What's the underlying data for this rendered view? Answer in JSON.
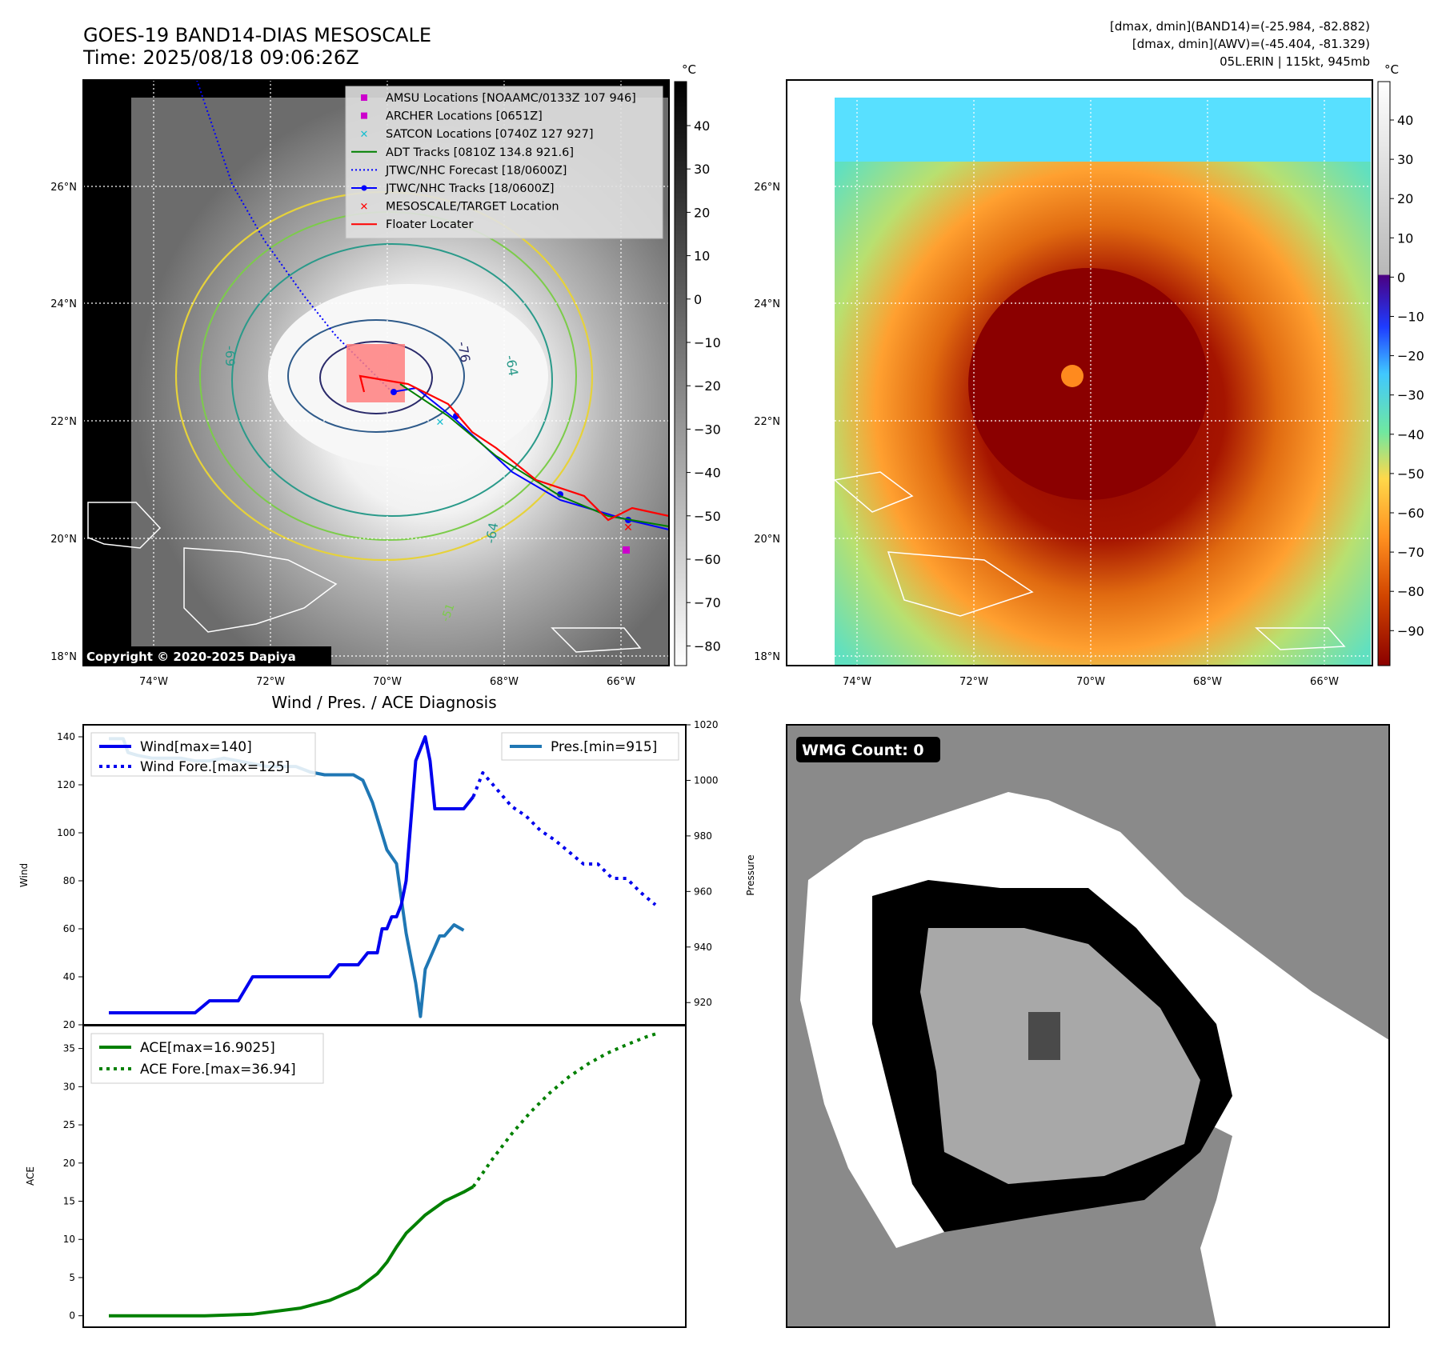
{
  "header": {
    "title": "GOES-19 BAND14-DIAS MESOSCALE",
    "time": "Time: 2025/08/18 09:06:26Z",
    "dmax_band14": "[dmax, dmin](BAND14)=(-25.984, -82.882)",
    "dmax_awv": "[dmax, dmin](AWV)=(-45.404, -81.329)",
    "storm": "05L.ERIN | 115kt, 945mb"
  },
  "map": {
    "lon_labels": [
      "74°W",
      "72°W",
      "70°W",
      "68°W",
      "66°W"
    ],
    "lat_labels": [
      "26°N",
      "24°N",
      "22°N",
      "20°N",
      "18°N"
    ],
    "copyright": "Copyright © 2020-2025 Dapiya",
    "contour_labels": [
      "-76",
      "-64",
      "-64",
      "-69",
      "-51"
    ],
    "legend": [
      {
        "label": "AMSU Locations [NOAAMC/0133Z 107 946]",
        "color": "#cc00cc",
        "marker": "square"
      },
      {
        "label": "ARCHER Locations [0651Z]",
        "color": "#cc00cc",
        "marker": "square"
      },
      {
        "label": "SATCON Locations [0740Z 127 927]",
        "color": "#17becf",
        "marker": "x"
      },
      {
        "label": "ADT Tracks [0810Z 134.8 921.6]",
        "color": "#008000",
        "marker": "line"
      },
      {
        "label": "JTWC/NHC Forecast [18/0600Z]",
        "color": "#0000ff",
        "marker": "dotted"
      },
      {
        "label": "JTWC/NHC Tracks [18/0600Z]",
        "color": "#0000ff",
        "marker": "line-dot"
      },
      {
        "label": "MESOSCALE/TARGET Location",
        "color": "#ff0000",
        "marker": "x"
      },
      {
        "label": "Floater Locater",
        "color": "#ff0000",
        "marker": "line"
      }
    ]
  },
  "colorbars": {
    "unit": "°C",
    "gray_ticks": [
      "40",
      "30",
      "20",
      "10",
      "0",
      "−10",
      "−20",
      "−30",
      "−40",
      "−50",
      "−60",
      "−70",
      "−80"
    ],
    "color_ticks": [
      "40",
      "30",
      "20",
      "10",
      "0",
      "−10",
      "−20",
      "−30",
      "−40",
      "−50",
      "−60",
      "−70",
      "−80",
      "−90"
    ]
  },
  "wmg": {
    "label": "WMG Count: 0"
  },
  "chart_data": [
    {
      "type": "line",
      "title": "Wind / Pres. / ACE Diagnosis",
      "ylabel": "Wind",
      "ylabel_right": "Pressure",
      "ylim": [
        20,
        145
      ],
      "ylim_right": [
        912,
        1020
      ],
      "yticks": [
        20,
        40,
        60,
        80,
        100,
        120,
        140
      ],
      "yticks_right": [
        920,
        940,
        960,
        980,
        1000,
        1020
      ],
      "series": [
        {
          "name": "Wind[max=140]",
          "style": "solid",
          "color": "#0000ee",
          "axis": "left",
          "x": [
            0,
            6,
            12,
            15,
            18,
            21,
            24,
            27,
            30,
            33,
            36,
            39,
            42,
            44,
            46,
            48,
            50,
            52,
            54,
            56,
            57,
            58,
            59,
            60,
            61,
            62,
            64,
            66,
            67,
            68,
            69,
            70,
            72,
            74,
            76
          ],
          "y": [
            25,
            25,
            25,
            25,
            25,
            30,
            30,
            30,
            40,
            40,
            40,
            40,
            40,
            40,
            40,
            45,
            45,
            45,
            50,
            50,
            60,
            60,
            65,
            65,
            70,
            80,
            130,
            140,
            130,
            110,
            110,
            110,
            110,
            110,
            115
          ]
        },
        {
          "name": "Wind Fore.[max=125]",
          "style": "dotted",
          "color": "#0000ee",
          "axis": "left",
          "x": [
            76,
            78,
            81,
            84,
            87,
            90,
            93,
            96,
            99,
            102,
            105,
            108,
            111,
            114
          ],
          "y": [
            115,
            125,
            118,
            111,
            107,
            101,
            97,
            92,
            87,
            87,
            81,
            81,
            75,
            70
          ]
        },
        {
          "name": "Pres.[min=915]",
          "style": "solid",
          "color": "#1f77b4",
          "axis": "right",
          "x": [
            0,
            3,
            4,
            6,
            9,
            12,
            15,
            18,
            21,
            24,
            27,
            30,
            33,
            36,
            39,
            42,
            45,
            47,
            49,
            51,
            53,
            55,
            58,
            60,
            62,
            64,
            65,
            66,
            67,
            68,
            69,
            70,
            72,
            74
          ],
          "y": [
            1015,
            1015,
            1010,
            1009,
            1008,
            1008,
            1008,
            1007,
            1007,
            1008,
            1007,
            1006,
            1005,
            1005,
            1005,
            1003,
            1002,
            1002,
            1002,
            1002,
            1000,
            992,
            975,
            970,
            945,
            927,
            915,
            932,
            936,
            940,
            944,
            944,
            948,
            946
          ]
        }
      ]
    },
    {
      "type": "line",
      "ylabel": "ACE",
      "ylim": [
        -1.5,
        38
      ],
      "yticks": [
        0,
        5,
        10,
        15,
        20,
        25,
        30,
        35
      ],
      "series": [
        {
          "name": "ACE[max=16.9025]",
          "style": "solid",
          "color": "#008000",
          "x": [
            0,
            10,
            20,
            30,
            40,
            46,
            52,
            56,
            58,
            60,
            62,
            64,
            66,
            70,
            74,
            76
          ],
          "y": [
            0,
            0,
            0,
            0.2,
            1.0,
            2.0,
            3.6,
            5.5,
            7.0,
            9.0,
            10.8,
            12.0,
            13.2,
            15.0,
            16.2,
            16.9
          ]
        },
        {
          "name": "ACE Fore.[max=36.94]",
          "style": "dotted",
          "color": "#008000",
          "x": [
            76,
            80,
            84,
            88,
            92,
            96,
            100,
            104,
            108,
            112,
            114
          ],
          "y": [
            16.9,
            20.5,
            23.8,
            26.7,
            29.2,
            31.3,
            33.0,
            34.4,
            35.5,
            36.5,
            36.9
          ]
        }
      ]
    }
  ]
}
